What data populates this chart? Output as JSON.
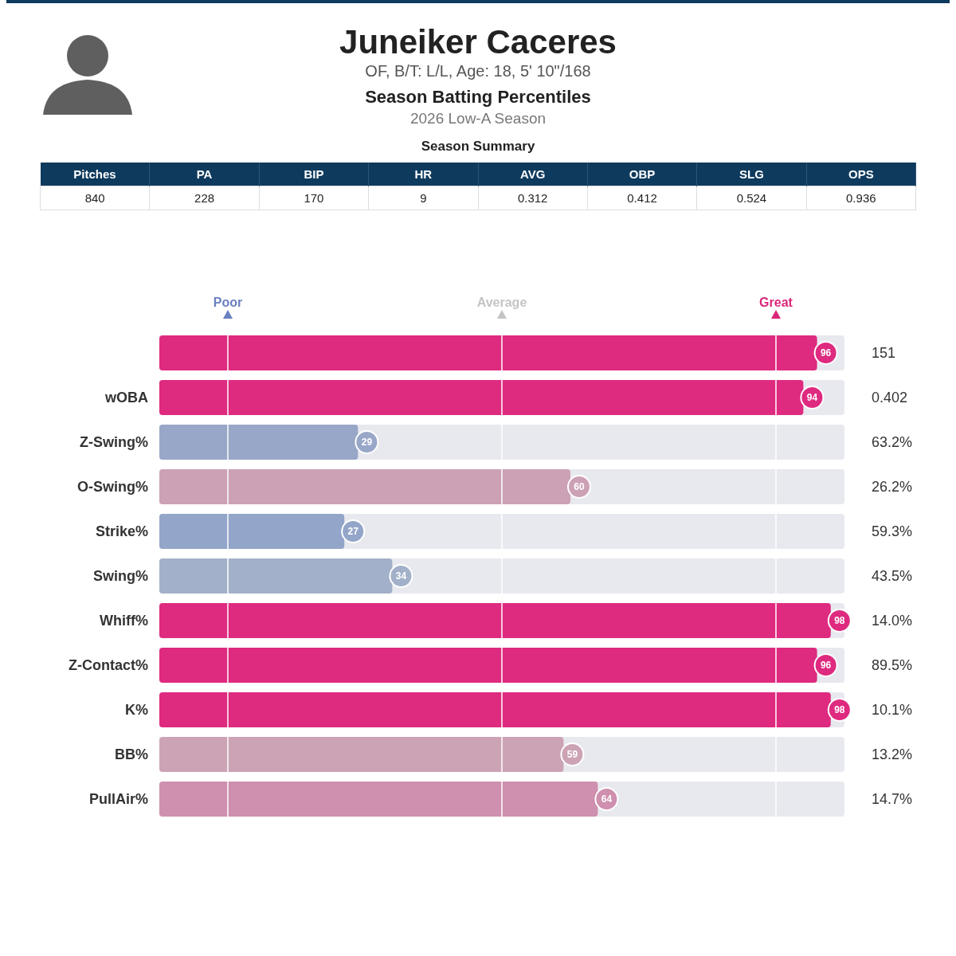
{
  "chart_data": [
    {
      "type": "other",
      "title": "Juneiker Caceres",
      "subtitle": "OF, B/T: L/L, Age: 18, 5' 10\"/168",
      "annotations": [
        "Season Batting Percentiles",
        "2026 Low-A Season"
      ]
    },
    {
      "type": "other",
      "title": "Season Summary",
      "categories": [
        "Pitches",
        "PA",
        "BIP",
        "HR",
        "AVG",
        "OBP",
        "SLG",
        "OPS"
      ],
      "value_labels": [
        "840",
        "228",
        "170",
        "9",
        "0.312",
        "0.412",
        "0.524",
        "0.936"
      ]
    },
    {
      "type": "bar",
      "orientation": "horizontal",
      "categories": [
        null,
        "wOBA",
        "Z-Swing%",
        "O-Swing%",
        "Strike%",
        "Swing%",
        "Whiff%",
        "Z-Contact%",
        "K%",
        "BB%",
        "PullAir%"
      ],
      "values": [
        96,
        94,
        29,
        60,
        27,
        34,
        98,
        96,
        98,
        59,
        64
      ],
      "colors": [
        "#de2a7f",
        "#de2a7f",
        "#98a7c8",
        "#cca1b5",
        "#93a5c9",
        "#a3b0c9",
        "#de2a7f",
        "#de2a7f",
        "#de2a7f",
        "#cca3b5",
        "#cf8fae"
      ],
      "data_labels": true,
      "xlim": [
        0,
        100
      ],
      "tick_labels": "y",
      "ref_lines": [
        {
          "axis": "x",
          "value": 10,
          "label": "Poor",
          "color": "#ffffff"
        },
        {
          "axis": "x",
          "value": 50,
          "label": "Average",
          "color": "#ffffff"
        },
        {
          "axis": "x",
          "value": 90,
          "label": "Great",
          "color": "#ffffff"
        }
      ],
      "annotations": [
        "151",
        "0.402",
        "63.2%",
        "26.2%",
        "59.3%",
        "43.5%",
        "14.0%",
        "89.5%",
        "10.1%",
        "13.2%",
        "14.7%"
      ]
    }
  ]
}
